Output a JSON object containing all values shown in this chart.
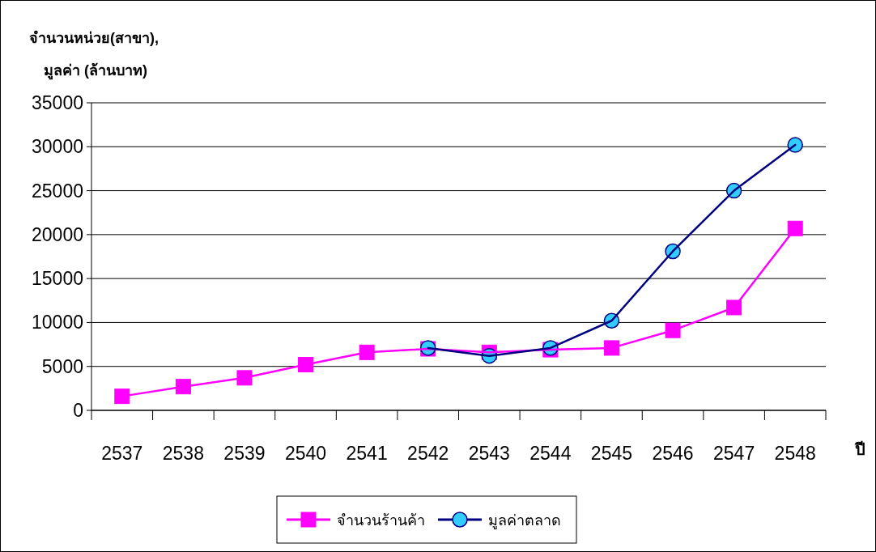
{
  "chart_data": {
    "type": "line",
    "ylabel": "จำนวนหน่วย(สาขา),\nมูลค่า (ล้านบาท)",
    "xlabel": "ปี",
    "categories": [
      "2537",
      "2538",
      "2539",
      "2540",
      "2541",
      "2542",
      "2543",
      "2544",
      "2545",
      "2546",
      "2547",
      "2548"
    ],
    "series": [
      {
        "name": "จำนวนร้านค้า",
        "color": "#ff00ff",
        "marker": "square",
        "values": [
          1600,
          2700,
          3700,
          5200,
          6600,
          7000,
          6600,
          6900,
          7100,
          9100,
          11700,
          20700
        ]
      },
      {
        "name": "มูลค่าตลาด",
        "color": "#000080",
        "marker": "circle",
        "values": [
          null,
          null,
          null,
          null,
          null,
          7100,
          6200,
          7100,
          10200,
          18100,
          25000,
          30200
        ]
      }
    ],
    "ylim": [
      0,
      35000
    ],
    "yticks": [
      0,
      5000,
      10000,
      15000,
      20000,
      25000,
      30000,
      35000
    ],
    "grid": "y",
    "legend": "bottom"
  }
}
